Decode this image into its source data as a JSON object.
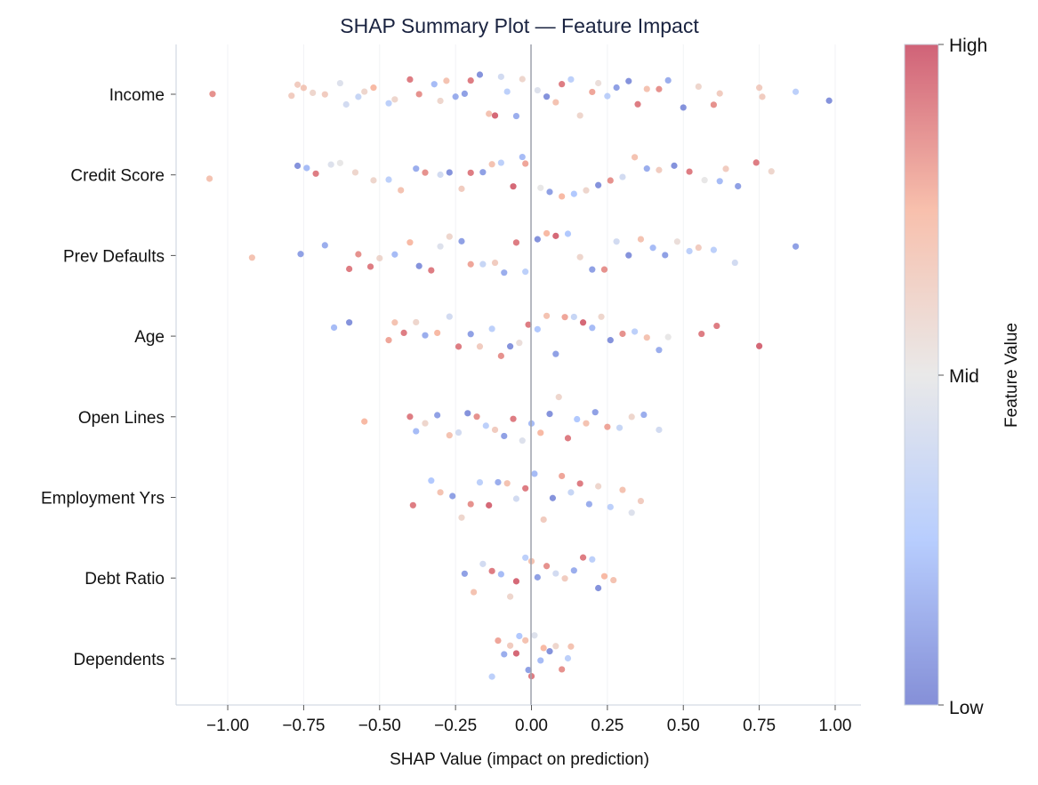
{
  "chart_data": {
    "type": "scatter",
    "subtype": "beeswarm",
    "title": "SHAP Summary Plot — Feature Impact",
    "xlabel": "SHAP Value (impact on prediction)",
    "xlim": [
      -1.17,
      1.085
    ],
    "xticks": [
      -1.0,
      -0.75,
      -0.5,
      -0.25,
      0.0,
      0.25,
      0.5,
      0.75,
      1.0
    ],
    "xtick_labels": [
      "−1.00",
      "−0.75",
      "−0.50",
      "−0.25",
      "0.00",
      "0.25",
      "0.50",
      "0.75",
      "1.00"
    ],
    "grid": "vertical, faint",
    "colormap": "coolwarm",
    "colormap_stops": [
      "#3b4cc0",
      "#8db0fe",
      "#dddcdc",
      "#f49a7b",
      "#b40426"
    ],
    "colorbar": {
      "label": "Feature Value",
      "ticks": [
        "High",
        "Mid",
        "Low"
      ]
    },
    "point_format": "[shap_value, feature_value (0=Low, 1=High)]",
    "features": [
      {
        "name": "Income",
        "points": [
          [
            -1.05,
            0.85
          ],
          [
            -0.79,
            0.65
          ],
          [
            -0.77,
            0.65
          ],
          [
            -0.75,
            0.68
          ],
          [
            -0.72,
            0.6
          ],
          [
            -0.68,
            0.65
          ],
          [
            -0.63,
            0.45
          ],
          [
            -0.61,
            0.4
          ],
          [
            -0.57,
            0.35
          ],
          [
            -0.55,
            0.6
          ],
          [
            -0.52,
            0.75
          ],
          [
            -0.47,
            0.3
          ],
          [
            -0.45,
            0.6
          ],
          [
            -0.4,
            0.9
          ],
          [
            -0.37,
            0.85
          ],
          [
            -0.32,
            0.2
          ],
          [
            -0.3,
            0.6
          ],
          [
            -0.28,
            0.7
          ],
          [
            -0.25,
            0.15
          ],
          [
            -0.22,
            0.1
          ],
          [
            -0.2,
            0.9
          ],
          [
            -0.17,
            0.05
          ],
          [
            -0.14,
            0.7
          ],
          [
            -0.12,
            0.95
          ],
          [
            -0.1,
            0.4
          ],
          [
            -0.08,
            0.3
          ],
          [
            -0.05,
            0.15
          ],
          [
            -0.03,
            0.6
          ],
          [
            0.02,
            0.45
          ],
          [
            0.05,
            0.05
          ],
          [
            0.08,
            0.7
          ],
          [
            0.1,
            0.9
          ],
          [
            0.13,
            0.3
          ],
          [
            0.16,
            0.6
          ],
          [
            0.2,
            0.8
          ],
          [
            0.22,
            0.55
          ],
          [
            0.25,
            0.3
          ],
          [
            0.28,
            0.1
          ],
          [
            0.32,
            0.05
          ],
          [
            0.35,
            0.9
          ],
          [
            0.38,
            0.7
          ],
          [
            0.42,
            0.85
          ],
          [
            0.45,
            0.15
          ],
          [
            0.5,
            0.05
          ],
          [
            0.55,
            0.6
          ],
          [
            0.6,
            0.85
          ],
          [
            0.62,
            0.65
          ],
          [
            0.75,
            0.65
          ],
          [
            0.76,
            0.65
          ],
          [
            0.87,
            0.3
          ],
          [
            0.98,
            0.05
          ]
        ]
      },
      {
        "name": "Credit Score",
        "points": [
          [
            -1.06,
            0.7
          ],
          [
            -0.77,
            0.05
          ],
          [
            -0.74,
            0.2
          ],
          [
            -0.71,
            0.9
          ],
          [
            -0.66,
            0.45
          ],
          [
            -0.63,
            0.5
          ],
          [
            -0.58,
            0.6
          ],
          [
            -0.52,
            0.6
          ],
          [
            -0.47,
            0.3
          ],
          [
            -0.43,
            0.7
          ],
          [
            -0.38,
            0.15
          ],
          [
            -0.35,
            0.85
          ],
          [
            -0.3,
            0.4
          ],
          [
            -0.27,
            0.05
          ],
          [
            -0.23,
            0.65
          ],
          [
            -0.2,
            0.9
          ],
          [
            -0.16,
            0.1
          ],
          [
            -0.13,
            0.7
          ],
          [
            -0.1,
            0.3
          ],
          [
            -0.06,
            0.95
          ],
          [
            -0.03,
            0.2
          ],
          [
            -0.02,
            0.8
          ],
          [
            0.03,
            0.5
          ],
          [
            0.06,
            0.1
          ],
          [
            0.1,
            0.75
          ],
          [
            0.14,
            0.25
          ],
          [
            0.18,
            0.6
          ],
          [
            0.22,
            0.05
          ],
          [
            0.26,
            0.85
          ],
          [
            0.3,
            0.4
          ],
          [
            0.34,
            0.7
          ],
          [
            0.38,
            0.15
          ],
          [
            0.42,
            0.65
          ],
          [
            0.47,
            0.05
          ],
          [
            0.52,
            0.9
          ],
          [
            0.57,
            0.5
          ],
          [
            0.62,
            0.2
          ],
          [
            0.64,
            0.65
          ],
          [
            0.68,
            0.1
          ],
          [
            0.74,
            0.9
          ],
          [
            0.79,
            0.6
          ]
        ]
      },
      {
        "name": "Prev Defaults",
        "points": [
          [
            -0.92,
            0.7
          ],
          [
            -0.76,
            0.1
          ],
          [
            -0.68,
            0.15
          ],
          [
            -0.6,
            0.9
          ],
          [
            -0.57,
            0.85
          ],
          [
            -0.53,
            0.9
          ],
          [
            -0.5,
            0.6
          ],
          [
            -0.45,
            0.2
          ],
          [
            -0.4,
            0.75
          ],
          [
            -0.37,
            0.05
          ],
          [
            -0.33,
            0.9
          ],
          [
            -0.3,
            0.45
          ],
          [
            -0.27,
            0.6
          ],
          [
            -0.23,
            0.1
          ],
          [
            -0.2,
            0.8
          ],
          [
            -0.16,
            0.35
          ],
          [
            -0.12,
            0.65
          ],
          [
            -0.09,
            0.15
          ],
          [
            -0.05,
            0.9
          ],
          [
            -0.02,
            0.3
          ],
          [
            0.02,
            0.05
          ],
          [
            0.05,
            0.75
          ],
          [
            0.08,
            0.95
          ],
          [
            0.12,
            0.25
          ],
          [
            0.16,
            0.6
          ],
          [
            0.2,
            0.1
          ],
          [
            0.24,
            0.85
          ],
          [
            0.28,
            0.4
          ],
          [
            0.32,
            0.05
          ],
          [
            0.36,
            0.7
          ],
          [
            0.4,
            0.2
          ],
          [
            0.44,
            0.1
          ],
          [
            0.48,
            0.55
          ],
          [
            0.52,
            0.3
          ],
          [
            0.55,
            0.65
          ],
          [
            0.6,
            0.3
          ],
          [
            0.67,
            0.4
          ],
          [
            0.87,
            0.1
          ]
        ]
      },
      {
        "name": "Age",
        "points": [
          [
            -0.65,
            0.2
          ],
          [
            -0.6,
            0.05
          ],
          [
            -0.47,
            0.8
          ],
          [
            -0.45,
            0.7
          ],
          [
            -0.42,
            0.9
          ],
          [
            -0.38,
            0.6
          ],
          [
            -0.35,
            0.15
          ],
          [
            -0.31,
            0.75
          ],
          [
            -0.27,
            0.4
          ],
          [
            -0.24,
            0.9
          ],
          [
            -0.2,
            0.1
          ],
          [
            -0.17,
            0.65
          ],
          [
            -0.13,
            0.3
          ],
          [
            -0.1,
            0.85
          ],
          [
            -0.07,
            0.05
          ],
          [
            -0.04,
            0.55
          ],
          [
            -0.01,
            0.9
          ],
          [
            0.02,
            0.25
          ],
          [
            0.05,
            0.7
          ],
          [
            0.08,
            0.1
          ],
          [
            0.11,
            0.8
          ],
          [
            0.14,
            0.35
          ],
          [
            0.17,
            0.95
          ],
          [
            0.2,
            0.2
          ],
          [
            0.23,
            0.6
          ],
          [
            0.26,
            0.05
          ],
          [
            0.3,
            0.85
          ],
          [
            0.34,
            0.3
          ],
          [
            0.38,
            0.7
          ],
          [
            0.42,
            0.15
          ],
          [
            0.45,
            0.5
          ],
          [
            0.56,
            0.9
          ],
          [
            0.61,
            0.9
          ],
          [
            0.75,
            0.95
          ]
        ]
      },
      {
        "name": "Open Lines",
        "points": [
          [
            -0.55,
            0.75
          ],
          [
            -0.4,
            0.9
          ],
          [
            -0.38,
            0.2
          ],
          [
            -0.35,
            0.6
          ],
          [
            -0.31,
            0.1
          ],
          [
            -0.27,
            0.7
          ],
          [
            -0.24,
            0.4
          ],
          [
            -0.21,
            0.05
          ],
          [
            -0.18,
            0.85
          ],
          [
            -0.15,
            0.3
          ],
          [
            -0.12,
            0.65
          ],
          [
            -0.09,
            0.1
          ],
          [
            -0.06,
            0.9
          ],
          [
            -0.03,
            0.45
          ],
          [
            0.0,
            0.2
          ],
          [
            0.03,
            0.75
          ],
          [
            0.06,
            0.05
          ],
          [
            0.09,
            0.6
          ],
          [
            0.12,
            0.9
          ],
          [
            0.15,
            0.25
          ],
          [
            0.18,
            0.7
          ],
          [
            0.21,
            0.1
          ],
          [
            0.25,
            0.8
          ],
          [
            0.29,
            0.35
          ],
          [
            0.33,
            0.6
          ],
          [
            0.37,
            0.15
          ],
          [
            0.42,
            0.4
          ]
        ]
      },
      {
        "name": "Employment Yrs",
        "points": [
          [
            -0.39,
            0.9
          ],
          [
            -0.33,
            0.25
          ],
          [
            -0.3,
            0.7
          ],
          [
            -0.26,
            0.1
          ],
          [
            -0.23,
            0.6
          ],
          [
            -0.2,
            0.85
          ],
          [
            -0.17,
            0.3
          ],
          [
            -0.14,
            0.95
          ],
          [
            -0.11,
            0.15
          ],
          [
            -0.08,
            0.7
          ],
          [
            -0.05,
            0.4
          ],
          [
            -0.02,
            0.9
          ],
          [
            0.01,
            0.2
          ],
          [
            0.04,
            0.65
          ],
          [
            0.07,
            0.05
          ],
          [
            0.1,
            0.8
          ],
          [
            0.13,
            0.35
          ],
          [
            0.16,
            0.9
          ],
          [
            0.19,
            0.15
          ],
          [
            0.22,
            0.6
          ],
          [
            0.26,
            0.3
          ],
          [
            0.3,
            0.7
          ],
          [
            0.33,
            0.45
          ],
          [
            0.36,
            0.65
          ]
        ]
      },
      {
        "name": "Debt Ratio",
        "points": [
          [
            -0.22,
            0.1
          ],
          [
            -0.19,
            0.7
          ],
          [
            -0.16,
            0.4
          ],
          [
            -0.13,
            0.9
          ],
          [
            -0.1,
            0.2
          ],
          [
            -0.07,
            0.6
          ],
          [
            -0.05,
            0.95
          ],
          [
            -0.02,
            0.3
          ],
          [
            0.0,
            0.7
          ],
          [
            0.02,
            0.1
          ],
          [
            0.05,
            0.85
          ],
          [
            0.08,
            0.4
          ],
          [
            0.11,
            0.65
          ],
          [
            0.14,
            0.15
          ],
          [
            0.17,
            0.9
          ],
          [
            0.2,
            0.3
          ],
          [
            0.22,
            0.05
          ],
          [
            0.24,
            0.75
          ],
          [
            0.27,
            0.7
          ]
        ]
      },
      {
        "name": "Dependents",
        "points": [
          [
            -0.13,
            0.3
          ],
          [
            -0.11,
            0.8
          ],
          [
            -0.09,
            0.15
          ],
          [
            -0.07,
            0.65
          ],
          [
            -0.05,
            0.95
          ],
          [
            -0.04,
            0.25
          ],
          [
            -0.02,
            0.7
          ],
          [
            -0.01,
            0.1
          ],
          [
            0.0,
            0.9
          ],
          [
            0.01,
            0.45
          ],
          [
            0.03,
            0.2
          ],
          [
            0.04,
            0.75
          ],
          [
            0.06,
            0.05
          ],
          [
            0.08,
            0.6
          ],
          [
            0.1,
            0.85
          ],
          [
            0.12,
            0.3
          ],
          [
            0.13,
            0.7
          ]
        ]
      }
    ]
  }
}
